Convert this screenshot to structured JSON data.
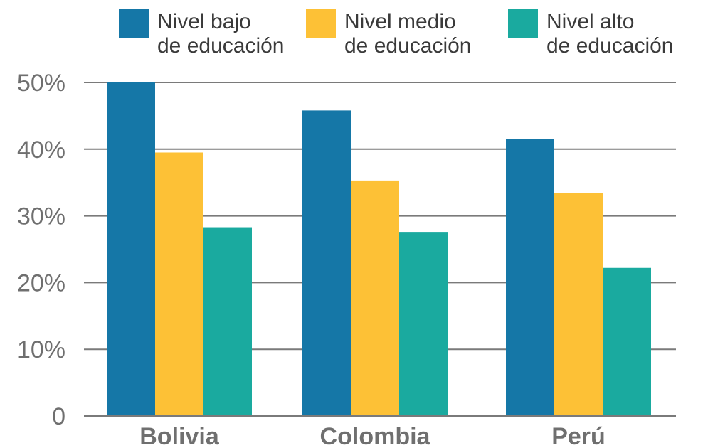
{
  "chart_data": {
    "type": "bar",
    "title": "",
    "xlabel": "",
    "ylabel": "",
    "categories": [
      "Bolivia",
      "Colombia",
      "Perú"
    ],
    "series": [
      {
        "name": "Nivel bajo de educación",
        "name_lines": [
          "Nivel bajo",
          "de educación"
        ],
        "color": "#1577a7",
        "values": [
          50,
          45.8,
          41.5
        ]
      },
      {
        "name": "Nivel medio de educación",
        "name_lines": [
          "Nivel medio",
          "de educación"
        ],
        "color": "#fdc136",
        "values": [
          39.5,
          35.3,
          33.4
        ]
      },
      {
        "name": "Nivel alto de educación",
        "name_lines": [
          "Nivel alto",
          "de educación"
        ],
        "color": "#1aaa9f",
        "values": [
          28.3,
          27.6,
          22.2
        ]
      }
    ],
    "ylim": [
      0,
      50
    ],
    "yticks": [
      0,
      10,
      20,
      30,
      40,
      50
    ],
    "ytick_labels": [
      "0",
      "10%",
      "20%",
      "30%",
      "40%",
      "50%"
    ],
    "grid": true,
    "legend_position": "top"
  }
}
